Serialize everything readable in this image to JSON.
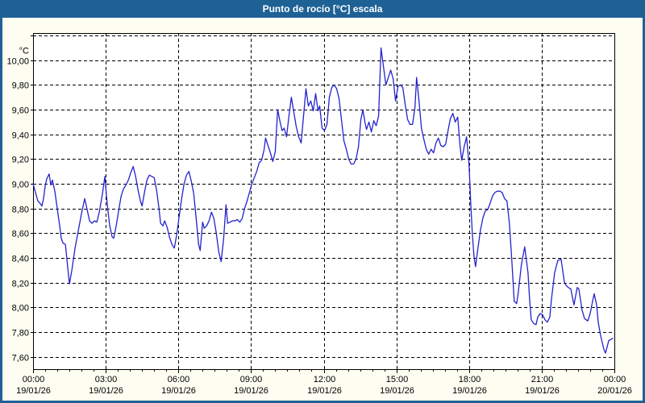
{
  "window": {
    "title": "Punto de rocío [°C] escala"
  },
  "colors": {
    "titlebar_bg": "#1e6195",
    "title_text": "#ffffff",
    "panel_bg": "#fdfdf2",
    "plot_bg": "#ffffff",
    "grid": "#000000",
    "axis": "#000000",
    "line": "#2323cc"
  },
  "chart_data": {
    "type": "line",
    "title": "Punto de rocío [°C] escala",
    "unit_label": "°C",
    "grid": "dashed",
    "legend": "none",
    "y_axis": {
      "min": 7.5,
      "max": 10.22,
      "tick_step": 0.2,
      "ticks": [
        {
          "v": 10.2,
          "label": ""
        },
        {
          "v": 10.0,
          "label": "10,00"
        },
        {
          "v": 9.8,
          "label": "9,80"
        },
        {
          "v": 9.6,
          "label": "9,60"
        },
        {
          "v": 9.4,
          "label": "9,40"
        },
        {
          "v": 9.2,
          "label": "9,20"
        },
        {
          "v": 9.0,
          "label": "9,00"
        },
        {
          "v": 8.8,
          "label": "8,80"
        },
        {
          "v": 8.6,
          "label": "8,60"
        },
        {
          "v": 8.4,
          "label": "8,40"
        },
        {
          "v": 8.2,
          "label": "8,20"
        },
        {
          "v": 8.0,
          "label": "8,00"
        },
        {
          "v": 7.8,
          "label": "7,80"
        },
        {
          "v": 7.6,
          "label": "7,60"
        }
      ]
    },
    "x_axis": {
      "min_hours": 0,
      "max_hours": 24,
      "minor_tick_minutes": 30,
      "ticks": [
        {
          "h": 0,
          "time": "00:00",
          "date": "19/01/26"
        },
        {
          "h": 3,
          "time": "03:00",
          "date": "19/01/26"
        },
        {
          "h": 6,
          "time": "06:00",
          "date": "19/01/26"
        },
        {
          "h": 9,
          "time": "09:00",
          "date": "19/01/26"
        },
        {
          "h": 12,
          "time": "12:00",
          "date": "19/01/26"
        },
        {
          "h": 15,
          "time": "15:00",
          "date": "19/01/26"
        },
        {
          "h": 18,
          "time": "18:00",
          "date": "19/01/26"
        },
        {
          "h": 21,
          "time": "21:00",
          "date": "19/01/26"
        },
        {
          "h": 24,
          "time": "00:00",
          "date": "20/01/26"
        }
      ]
    },
    "series": [
      {
        "name": "Punto de rocío [°C]",
        "color": "#2323cc",
        "points_minutes_value": [
          [
            0,
            9.0
          ],
          [
            6,
            8.93
          ],
          [
            12,
            8.86
          ],
          [
            18,
            8.84
          ],
          [
            22,
            8.82
          ],
          [
            26,
            8.88
          ],
          [
            30,
            8.98
          ],
          [
            34,
            9.04
          ],
          [
            40,
            9.08
          ],
          [
            44,
            8.99
          ],
          [
            48,
            9.03
          ],
          [
            54,
            8.94
          ],
          [
            60,
            8.8
          ],
          [
            66,
            8.66
          ],
          [
            70,
            8.56
          ],
          [
            74,
            8.52
          ],
          [
            80,
            8.51
          ],
          [
            84,
            8.38
          ],
          [
            90,
            8.19
          ],
          [
            96,
            8.3
          ],
          [
            104,
            8.48
          ],
          [
            112,
            8.62
          ],
          [
            120,
            8.76
          ],
          [
            128,
            8.88
          ],
          [
            134,
            8.79
          ],
          [
            140,
            8.7
          ],
          [
            146,
            8.68
          ],
          [
            152,
            8.7
          ],
          [
            158,
            8.69
          ],
          [
            164,
            8.77
          ],
          [
            172,
            8.92
          ],
          [
            178,
            9.06
          ],
          [
            182,
            8.9
          ],
          [
            186,
            8.77
          ],
          [
            190,
            8.66
          ],
          [
            196,
            8.57
          ],
          [
            200,
            8.56
          ],
          [
            206,
            8.66
          ],
          [
            212,
            8.78
          ],
          [
            218,
            8.9
          ],
          [
            224,
            8.96
          ],
          [
            230,
            8.99
          ],
          [
            236,
            9.03
          ],
          [
            242,
            9.09
          ],
          [
            248,
            9.14
          ],
          [
            254,
            9.06
          ],
          [
            260,
            8.95
          ],
          [
            266,
            8.86
          ],
          [
            270,
            8.82
          ],
          [
            276,
            8.93
          ],
          [
            282,
            9.03
          ],
          [
            288,
            9.07
          ],
          [
            294,
            9.06
          ],
          [
            300,
            9.05
          ],
          [
            306,
            8.95
          ],
          [
            312,
            8.8
          ],
          [
            316,
            8.68
          ],
          [
            322,
            8.66
          ],
          [
            326,
            8.7
          ],
          [
            332,
            8.65
          ],
          [
            338,
            8.57
          ],
          [
            344,
            8.51
          ],
          [
            350,
            8.48
          ],
          [
            356,
            8.59
          ],
          [
            362,
            8.74
          ],
          [
            368,
            8.88
          ],
          [
            374,
            9.0
          ],
          [
            380,
            9.07
          ],
          [
            386,
            9.1
          ],
          [
            392,
            9.02
          ],
          [
            398,
            8.92
          ],
          [
            404,
            8.72
          ],
          [
            410,
            8.51
          ],
          [
            414,
            8.46
          ],
          [
            420,
            8.69
          ],
          [
            424,
            8.64
          ],
          [
            430,
            8.66
          ],
          [
            436,
            8.7
          ],
          [
            442,
            8.77
          ],
          [
            448,
            8.72
          ],
          [
            454,
            8.6
          ],
          [
            460,
            8.45
          ],
          [
            466,
            8.37
          ],
          [
            472,
            8.55
          ],
          [
            478,
            8.83
          ],
          [
            482,
            8.68
          ],
          [
            488,
            8.69
          ],
          [
            494,
            8.7
          ],
          [
            500,
            8.7
          ],
          [
            506,
            8.71
          ],
          [
            512,
            8.69
          ],
          [
            518,
            8.72
          ],
          [
            524,
            8.8
          ],
          [
            530,
            8.86
          ],
          [
            536,
            8.93
          ],
          [
            542,
            9.0
          ],
          [
            548,
            9.05
          ],
          [
            554,
            9.1
          ],
          [
            560,
            9.17
          ],
          [
            566,
            9.19
          ],
          [
            572,
            9.27
          ],
          [
            576,
            9.37
          ],
          [
            582,
            9.31
          ],
          [
            588,
            9.25
          ],
          [
            594,
            9.18
          ],
          [
            600,
            9.26
          ],
          [
            606,
            9.6
          ],
          [
            612,
            9.5
          ],
          [
            617,
            9.43
          ],
          [
            622,
            9.45
          ],
          [
            628,
            9.38
          ],
          [
            634,
            9.55
          ],
          [
            640,
            9.7
          ],
          [
            646,
            9.58
          ],
          [
            652,
            9.46
          ],
          [
            658,
            9.38
          ],
          [
            664,
            9.33
          ],
          [
            670,
            9.55
          ],
          [
            676,
            9.77
          ],
          [
            682,
            9.63
          ],
          [
            688,
            9.67
          ],
          [
            694,
            9.59
          ],
          [
            700,
            9.73
          ],
          [
            706,
            9.59
          ],
          [
            710,
            9.63
          ],
          [
            716,
            9.45
          ],
          [
            722,
            9.43
          ],
          [
            728,
            9.48
          ],
          [
            734,
            9.7
          ],
          [
            740,
            9.78
          ],
          [
            746,
            9.8
          ],
          [
            752,
            9.77
          ],
          [
            758,
            9.69
          ],
          [
            764,
            9.52
          ],
          [
            770,
            9.35
          ],
          [
            776,
            9.28
          ],
          [
            782,
            9.2
          ],
          [
            788,
            9.16
          ],
          [
            794,
            9.16
          ],
          [
            800,
            9.2
          ],
          [
            806,
            9.3
          ],
          [
            812,
            9.52
          ],
          [
            817,
            9.6
          ],
          [
            822,
            9.5
          ],
          [
            826,
            9.44
          ],
          [
            832,
            9.5
          ],
          [
            838,
            9.42
          ],
          [
            844,
            9.51
          ],
          [
            850,
            9.47
          ],
          [
            856,
            9.55
          ],
          [
            862,
            10.1
          ],
          [
            868,
            9.95
          ],
          [
            874,
            9.8
          ],
          [
            880,
            9.86
          ],
          [
            886,
            9.92
          ],
          [
            892,
            9.85
          ],
          [
            898,
            9.67
          ],
          [
            904,
            9.79
          ],
          [
            910,
            9.8
          ],
          [
            916,
            9.78
          ],
          [
            922,
            9.64
          ],
          [
            928,
            9.52
          ],
          [
            934,
            9.48
          ],
          [
            940,
            9.48
          ],
          [
            946,
            9.62
          ],
          [
            950,
            9.86
          ],
          [
            956,
            9.67
          ],
          [
            962,
            9.45
          ],
          [
            968,
            9.36
          ],
          [
            974,
            9.28
          ],
          [
            980,
            9.24
          ],
          [
            986,
            9.28
          ],
          [
            992,
            9.25
          ],
          [
            998,
            9.33
          ],
          [
            1004,
            9.37
          ],
          [
            1010,
            9.31
          ],
          [
            1016,
            9.3
          ],
          [
            1022,
            9.32
          ],
          [
            1028,
            9.43
          ],
          [
            1034,
            9.53
          ],
          [
            1040,
            9.57
          ],
          [
            1046,
            9.5
          ],
          [
            1052,
            9.54
          ],
          [
            1058,
            9.3
          ],
          [
            1062,
            9.19
          ],
          [
            1068,
            9.3
          ],
          [
            1074,
            9.38
          ],
          [
            1080,
            9.15
          ],
          [
            1084,
            8.85
          ],
          [
            1088,
            8.6
          ],
          [
            1092,
            8.42
          ],
          [
            1096,
            8.33
          ],
          [
            1102,
            8.48
          ],
          [
            1108,
            8.62
          ],
          [
            1114,
            8.72
          ],
          [
            1120,
            8.78
          ],
          [
            1126,
            8.79
          ],
          [
            1132,
            8.84
          ],
          [
            1138,
            8.9
          ],
          [
            1144,
            8.93
          ],
          [
            1150,
            8.94
          ],
          [
            1156,
            8.94
          ],
          [
            1162,
            8.93
          ],
          [
            1168,
            8.88
          ],
          [
            1174,
            8.86
          ],
          [
            1180,
            8.68
          ],
          [
            1186,
            8.38
          ],
          [
            1192,
            8.05
          ],
          [
            1198,
            8.03
          ],
          [
            1202,
            8.12
          ],
          [
            1210,
            8.35
          ],
          [
            1218,
            8.49
          ],
          [
            1226,
            8.28
          ],
          [
            1230,
            8.06
          ],
          [
            1234,
            7.9
          ],
          [
            1240,
            7.87
          ],
          [
            1246,
            7.86
          ],
          [
            1250,
            7.92
          ],
          [
            1256,
            7.95
          ],
          [
            1262,
            7.94
          ],
          [
            1268,
            7.9
          ],
          [
            1274,
            7.88
          ],
          [
            1280,
            7.92
          ],
          [
            1284,
            8.06
          ],
          [
            1292,
            8.28
          ],
          [
            1300,
            8.38
          ],
          [
            1308,
            8.39
          ],
          [
            1316,
            8.21
          ],
          [
            1320,
            8.18
          ],
          [
            1326,
            8.16
          ],
          [
            1332,
            8.15
          ],
          [
            1340,
            8.02
          ],
          [
            1348,
            8.16
          ],
          [
            1352,
            8.15
          ],
          [
            1360,
            7.98
          ],
          [
            1366,
            7.91
          ],
          [
            1374,
            7.89
          ],
          [
            1380,
            7.95
          ],
          [
            1386,
            8.05
          ],
          [
            1390,
            8.11
          ],
          [
            1396,
            8.02
          ],
          [
            1400,
            7.88
          ],
          [
            1406,
            7.77
          ],
          [
            1414,
            7.66
          ],
          [
            1418,
            7.63
          ],
          [
            1426,
            7.73
          ],
          [
            1436,
            7.75
          ]
        ]
      }
    ]
  }
}
